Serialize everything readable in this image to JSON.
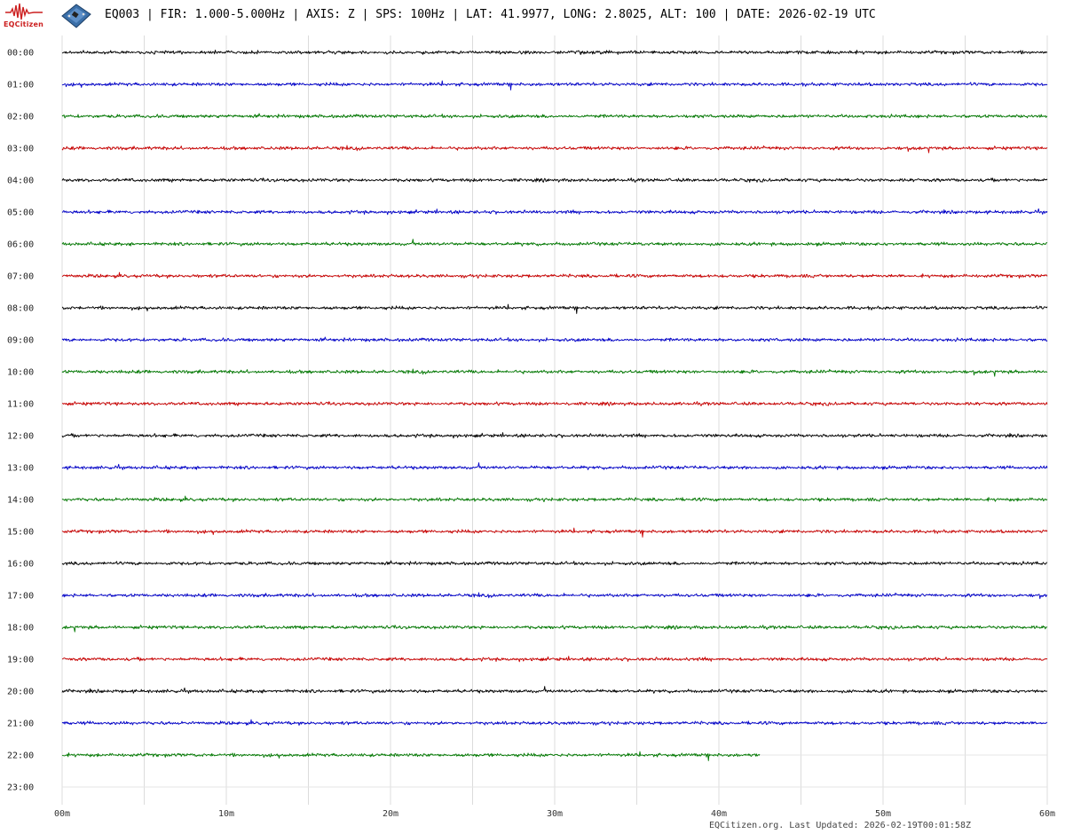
{
  "header": {
    "logo_text": "EQCitizen",
    "title": "EQ003 | FIR: 1.000-5.000Hz | AXIS: Z | SPS: 100Hz | LAT: 41.9977, LONG: 2.8025, ALT: 100 | DATE: 2026-02-19 UTC"
  },
  "footer": {
    "text": "EQCitizen.org. Last Updated: 2026-02-19T00:01:58Z"
  },
  "chart_data": {
    "type": "line",
    "title": "EQ003 | FIR: 1.000-5.000Hz | AXIS: Z | SPS: 100Hz | LAT: 41.9977, LONG: 2.8025, ALT: 100 | DATE: 2026-02-19 UTC",
    "x_tick_labels": [
      "00m",
      "10m",
      "20m",
      "30m",
      "40m",
      "50m",
      "60m"
    ],
    "x_range_minutes": [
      0,
      60
    ],
    "row_labels": [
      "00:00",
      "01:00",
      "02:00",
      "03:00",
      "04:00",
      "05:00",
      "06:00",
      "07:00",
      "08:00",
      "09:00",
      "10:00",
      "11:00",
      "12:00",
      "13:00",
      "14:00",
      "15:00",
      "16:00",
      "17:00",
      "18:00",
      "19:00",
      "20:00",
      "21:00",
      "22:00",
      "23:00"
    ],
    "row_colors": [
      "#000000",
      "#0000c8",
      "#007800",
      "#c80000"
    ],
    "grid": true,
    "rows": [
      {
        "label": "00:00",
        "duration_minutes": 60
      },
      {
        "label": "01:00",
        "duration_minutes": 60
      },
      {
        "label": "02:00",
        "duration_minutes": 60
      },
      {
        "label": "03:00",
        "duration_minutes": 60
      },
      {
        "label": "04:00",
        "duration_minutes": 60
      },
      {
        "label": "05:00",
        "duration_minutes": 60
      },
      {
        "label": "06:00",
        "duration_minutes": 60
      },
      {
        "label": "07:00",
        "duration_minutes": 60
      },
      {
        "label": "08:00",
        "duration_minutes": 60
      },
      {
        "label": "09:00",
        "duration_minutes": 60
      },
      {
        "label": "10:00",
        "duration_minutes": 60
      },
      {
        "label": "11:00",
        "duration_minutes": 60
      },
      {
        "label": "12:00",
        "duration_minutes": 60
      },
      {
        "label": "13:00",
        "duration_minutes": 60
      },
      {
        "label": "14:00",
        "duration_minutes": 60
      },
      {
        "label": "15:00",
        "duration_minutes": 60
      },
      {
        "label": "16:00",
        "duration_minutes": 60
      },
      {
        "label": "17:00",
        "duration_minutes": 60
      },
      {
        "label": "18:00",
        "duration_minutes": 60
      },
      {
        "label": "19:00",
        "duration_minutes": 60
      },
      {
        "label": "20:00",
        "duration_minutes": 60
      },
      {
        "label": "21:00",
        "duration_minutes": 60
      },
      {
        "label": "22:00",
        "duration_minutes": 42.5
      },
      {
        "label": "23:00",
        "duration_minutes": 0
      }
    ]
  }
}
